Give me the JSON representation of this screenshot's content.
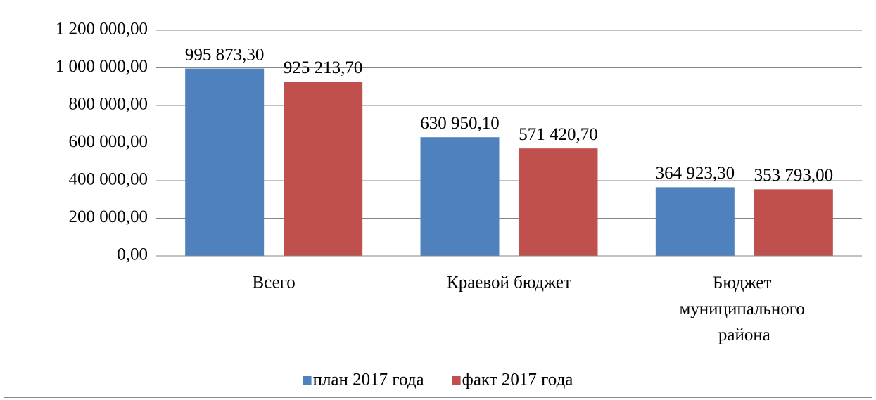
{
  "chart_data": {
    "type": "bar",
    "categories": [
      "Всего",
      "Краевой бюджет",
      "Бюджет муниципального района"
    ],
    "series": [
      {
        "name": "план 2017 года",
        "color": "#4f81bd",
        "values": [
          995873.3,
          630950.1,
          364923.3
        ],
        "value_labels": [
          "995 873,30",
          "630 950,10",
          "364 923,30"
        ]
      },
      {
        "name": "факт 2017 года",
        "color": "#c0504d",
        "values": [
          925213.7,
          571420.7,
          353793.0
        ],
        "value_labels": [
          "925 213,70",
          "571 420,70",
          "353 793,00"
        ]
      }
    ],
    "ylim": [
      0,
      1200000
    ],
    "yticks": [
      {
        "value": 0,
        "label": "0,00"
      },
      {
        "value": 200000,
        "label": "200 000,00"
      },
      {
        "value": 400000,
        "label": "400 000,00"
      },
      {
        "value": 600000,
        "label": "600 000,00"
      },
      {
        "value": 800000,
        "label": "800 000,00"
      },
      {
        "value": 1000000,
        "label": "1 000 000,00"
      },
      {
        "value": 1200000,
        "label": "1 200 000,00"
      }
    ],
    "grid": true,
    "legend": "bottom"
  }
}
